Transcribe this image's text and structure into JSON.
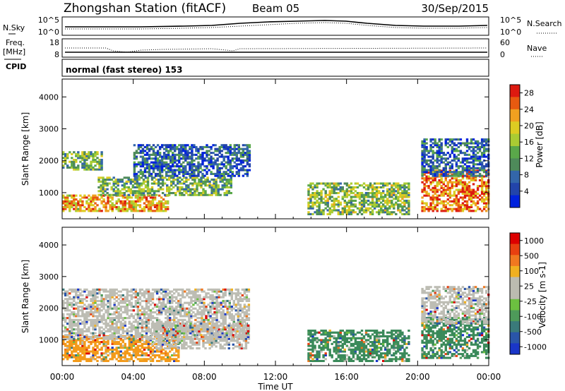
{
  "header": {
    "station": "Zhongshan Station (fitACF)",
    "beam": "Beam 05",
    "date": "30/Sep/2015"
  },
  "noise_panel": {
    "left_label": "N.Sky",
    "right_label": "N.Search",
    "left_ticks": [
      "10^5",
      "10^0"
    ],
    "right_ticks": [
      "10^5",
      "10^0"
    ]
  },
  "freq_panel": {
    "left_label_line1": "Freq.",
    "left_label_line2": "[MHz]",
    "right_label": "Nave",
    "left_ticks": [
      "18",
      "8"
    ],
    "right_ticks": [
      "60",
      "0"
    ]
  },
  "cpid_panel": {
    "label": "CPID",
    "mode_text": "normal (fast stereo) 153"
  },
  "chart_data": [
    {
      "type": "heatmap",
      "title": "",
      "xlabel": "Time UT",
      "ylabel": "Slant Range [km]",
      "x_ticks": [
        "00:00",
        "04:00",
        "08:00",
        "12:00",
        "16:00",
        "20:00",
        "00:00"
      ],
      "xlim_hours": [
        0,
        24
      ],
      "ylim": [
        180,
        4560
      ],
      "y_ticks": [
        1000,
        2000,
        3000,
        4000
      ],
      "colorbar": {
        "label": "Power [dB]",
        "ticks": [
          "4",
          "8",
          "12",
          "16",
          "20",
          "24",
          "28"
        ],
        "range": [
          0,
          30
        ],
        "colors": [
          "#0022dd",
          "#2244aa",
          "#3366aa",
          "#4e8a5a",
          "#5aa84a",
          "#aacc33",
          "#ddcc22",
          "#f0a020",
          "#e85a10",
          "#dd1a10"
        ]
      },
      "regions": [
        {
          "t0": 0.0,
          "t1": 6.0,
          "r0": 400,
          "r1": 900,
          "level": 0.72
        },
        {
          "t0": 0.0,
          "t1": 2.2,
          "r0": 1700,
          "r1": 2300,
          "level": 0.45
        },
        {
          "t0": 2.0,
          "t1": 9.5,
          "r0": 900,
          "r1": 1500,
          "level": 0.45
        },
        {
          "t0": 4.0,
          "t1": 10.5,
          "r0": 1500,
          "r1": 2500,
          "level": 0.22
        },
        {
          "t0": 13.8,
          "t1": 19.5,
          "r0": 300,
          "r1": 1300,
          "level": 0.5
        },
        {
          "t0": 20.2,
          "t1": 24.0,
          "r0": 400,
          "r1": 1700,
          "level": 0.82
        },
        {
          "t0": 20.2,
          "t1": 24.0,
          "r0": 1500,
          "r1": 2700,
          "level": 0.25
        }
      ]
    },
    {
      "type": "heatmap",
      "title": "",
      "xlabel": "Time UT",
      "ylabel": "Slant Range [km]",
      "x_ticks": [
        "00:00",
        "04:00",
        "08:00",
        "12:00",
        "16:00",
        "20:00",
        "00:00"
      ],
      "xlim_hours": [
        0,
        24
      ],
      "ylim": [
        180,
        4560
      ],
      "y_ticks": [
        1000,
        2000,
        3000,
        4000
      ],
      "colorbar": {
        "label": "Velocity [m s-1]",
        "ticks": [
          "1000",
          "500",
          "100",
          "25",
          "-25",
          "-100",
          "-500",
          "-1000"
        ],
        "colors": [
          "#1a36c8",
          "#2a55a8",
          "#3a7a7a",
          "#4e9a5a",
          "#6cc040",
          "#bbbbb0",
          "#bbbbb0",
          "#f0b020",
          "#f07820",
          "#e84010",
          "#dd0000"
        ]
      },
      "regions": [
        {
          "t0": 0.0,
          "t1": 6.5,
          "r0": 300,
          "r1": 1100,
          "color": "#f39a1a"
        },
        {
          "t0": 0.0,
          "t1": 10.5,
          "r0": 1000,
          "r1": 2600,
          "color": "#bdbdb4"
        },
        {
          "t0": 5.0,
          "t1": 10.5,
          "r0": 700,
          "r1": 1500,
          "color": "#bdbdb4"
        },
        {
          "t0": 13.8,
          "t1": 19.5,
          "r0": 300,
          "r1": 1300,
          "color": "#3a8a5a"
        },
        {
          "t0": 20.2,
          "t1": 24.0,
          "r0": 400,
          "r1": 1700,
          "color": "#3a8a5a"
        },
        {
          "t0": 20.2,
          "t1": 24.0,
          "r0": 1500,
          "r1": 2700,
          "color": "#bdbdb4"
        }
      ]
    }
  ]
}
